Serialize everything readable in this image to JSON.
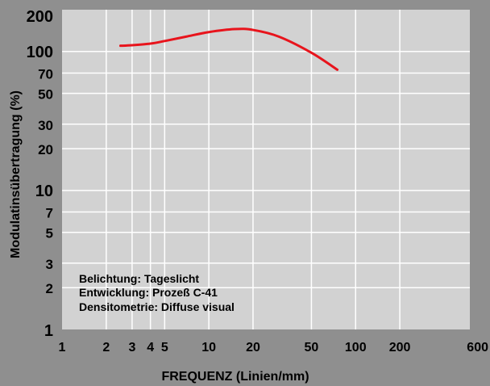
{
  "chart_data": {
    "type": "line",
    "title": "",
    "xlabel": "FREQUENZ (Linien/mm)",
    "ylabel": "Modulatinsübertragung (%)",
    "xscale": "log",
    "yscale": "log",
    "xlim": [
      1,
      600
    ],
    "ylim": [
      1,
      200
    ],
    "grid": true,
    "x_ticks": [
      1,
      2,
      3,
      4,
      5,
      10,
      20,
      50,
      100,
      200,
      600
    ],
    "x_tick_labels": [
      "1",
      "2",
      "3",
      "4",
      "5",
      "10",
      "20",
      "50",
      "100",
      "200",
      "600"
    ],
    "y_ticks": [
      1,
      2,
      3,
      5,
      7,
      10,
      20,
      30,
      50,
      70,
      100,
      200
    ],
    "y_tick_labels": [
      "1",
      "2",
      "3",
      "5",
      "7",
      "10",
      "20",
      "30",
      "50",
      "70",
      "100",
      "200"
    ],
    "series": [
      {
        "color": "#e8141c",
        "x": [
          2.5,
          3,
          4,
          5,
          7,
          10,
          15,
          20,
          30,
          50,
          75
        ],
        "y": [
          110,
          111,
          114,
          119,
          128,
          138,
          145,
          143,
          128,
          98,
          74
        ]
      }
    ],
    "annotations": [
      "Belichtung: Tageslicht",
      "Entwicklung: Prozeß C-41",
      "Densitometrie: Diffuse visual"
    ],
    "colors": {
      "background": "#8f8f8f",
      "plot_area": "#d2d2d2",
      "grid": "#ffffff",
      "line": "#e8141c"
    }
  }
}
